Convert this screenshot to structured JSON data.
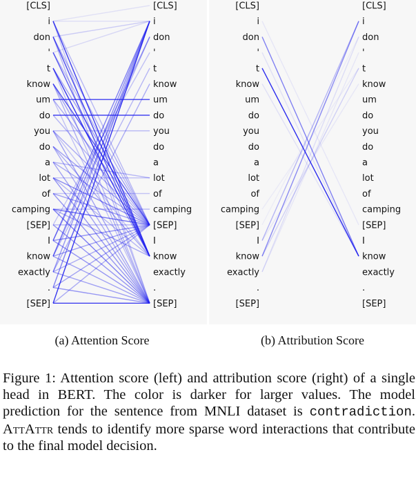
{
  "tokens": [
    "[CLS]",
    "i",
    "don",
    "'",
    "t",
    "know",
    "um",
    "do",
    "you",
    "do",
    "a",
    "lot",
    "of",
    "camping",
    "[SEP]",
    "I",
    "know",
    "exactly",
    ".",
    "[SEP]"
  ],
  "line_color": "#2020ee",
  "panels": [
    {
      "id": "attention",
      "caption": "(a) Attention Score",
      "edges": [
        [
          1,
          0,
          0.1
        ],
        [
          1,
          1,
          0.12
        ],
        [
          1,
          16,
          0.85
        ],
        [
          1,
          14,
          0.3
        ],
        [
          1,
          19,
          0.25
        ],
        [
          2,
          1,
          0.2
        ],
        [
          2,
          16,
          0.8
        ],
        [
          2,
          14,
          0.35
        ],
        [
          2,
          19,
          0.3
        ],
        [
          3,
          1,
          0.15
        ],
        [
          3,
          16,
          0.7
        ],
        [
          3,
          14,
          0.3
        ],
        [
          4,
          16,
          0.9
        ],
        [
          4,
          14,
          0.4
        ],
        [
          4,
          19,
          0.3
        ],
        [
          5,
          14,
          0.75
        ],
        [
          5,
          16,
          0.4
        ],
        [
          5,
          19,
          0.35
        ],
        [
          6,
          6,
          0.85
        ],
        [
          6,
          14,
          0.35
        ],
        [
          6,
          19,
          0.25
        ],
        [
          7,
          7,
          0.9
        ],
        [
          7,
          14,
          0.3
        ],
        [
          8,
          8,
          0.3
        ],
        [
          8,
          14,
          0.35
        ],
        [
          8,
          19,
          0.4
        ],
        [
          8,
          16,
          0.25
        ],
        [
          9,
          14,
          0.4
        ],
        [
          9,
          16,
          0.35
        ],
        [
          9,
          19,
          0.35
        ],
        [
          10,
          11,
          0.3
        ],
        [
          10,
          14,
          0.35
        ],
        [
          10,
          19,
          0.4
        ],
        [
          11,
          11,
          0.25
        ],
        [
          11,
          14,
          0.5
        ],
        [
          11,
          19,
          0.45
        ],
        [
          11,
          16,
          0.3
        ],
        [
          12,
          12,
          0.25
        ],
        [
          12,
          14,
          0.4
        ],
        [
          12,
          19,
          0.45
        ],
        [
          13,
          13,
          0.3
        ],
        [
          13,
          14,
          0.6
        ],
        [
          13,
          19,
          0.55
        ],
        [
          13,
          16,
          0.35
        ],
        [
          14,
          14,
          0.3
        ],
        [
          14,
          19,
          0.45
        ],
        [
          14,
          3,
          0.25
        ],
        [
          15,
          1,
          0.55
        ],
        [
          15,
          2,
          0.4
        ],
        [
          15,
          14,
          0.45
        ],
        [
          15,
          19,
          0.45
        ],
        [
          16,
          1,
          0.5
        ],
        [
          16,
          2,
          0.35
        ],
        [
          16,
          4,
          0.3
        ],
        [
          16,
          14,
          0.4
        ],
        [
          16,
          19,
          0.4
        ],
        [
          17,
          1,
          0.45
        ],
        [
          17,
          5,
          0.35
        ],
        [
          17,
          14,
          0.35
        ],
        [
          17,
          19,
          0.4
        ],
        [
          18,
          1,
          0.55
        ],
        [
          18,
          14,
          0.4
        ],
        [
          18,
          19,
          0.45
        ],
        [
          19,
          1,
          0.9
        ],
        [
          19,
          14,
          0.35
        ],
        [
          19,
          19,
          0.85
        ]
      ]
    },
    {
      "id": "attribution",
      "caption": "(b) Attribution Score",
      "edges": [
        [
          1,
          14,
          0.08
        ],
        [
          2,
          16,
          0.55
        ],
        [
          3,
          16,
          0.1
        ],
        [
          4,
          16,
          0.95
        ],
        [
          5,
          16,
          0.1
        ],
        [
          13,
          4,
          0.06
        ],
        [
          14,
          2,
          0.05
        ],
        [
          15,
          1,
          0.3
        ],
        [
          15,
          5,
          0.08
        ],
        [
          16,
          1,
          0.5
        ],
        [
          16,
          4,
          0.18
        ],
        [
          17,
          2,
          0.12
        ],
        [
          17,
          3,
          0.08
        ]
      ]
    }
  ],
  "caption": {
    "part1": "Figure 1: Attention score (left) and attribution score (right) of a single head in BERT. The color is darker for larger values. The model prediction for the sentence from MNLI dataset is ",
    "code": "contradiction",
    "part2": ". ",
    "method": "AttAttr",
    "part3": " tends to identify more sparse word interactions that contribute to the final model decision."
  }
}
